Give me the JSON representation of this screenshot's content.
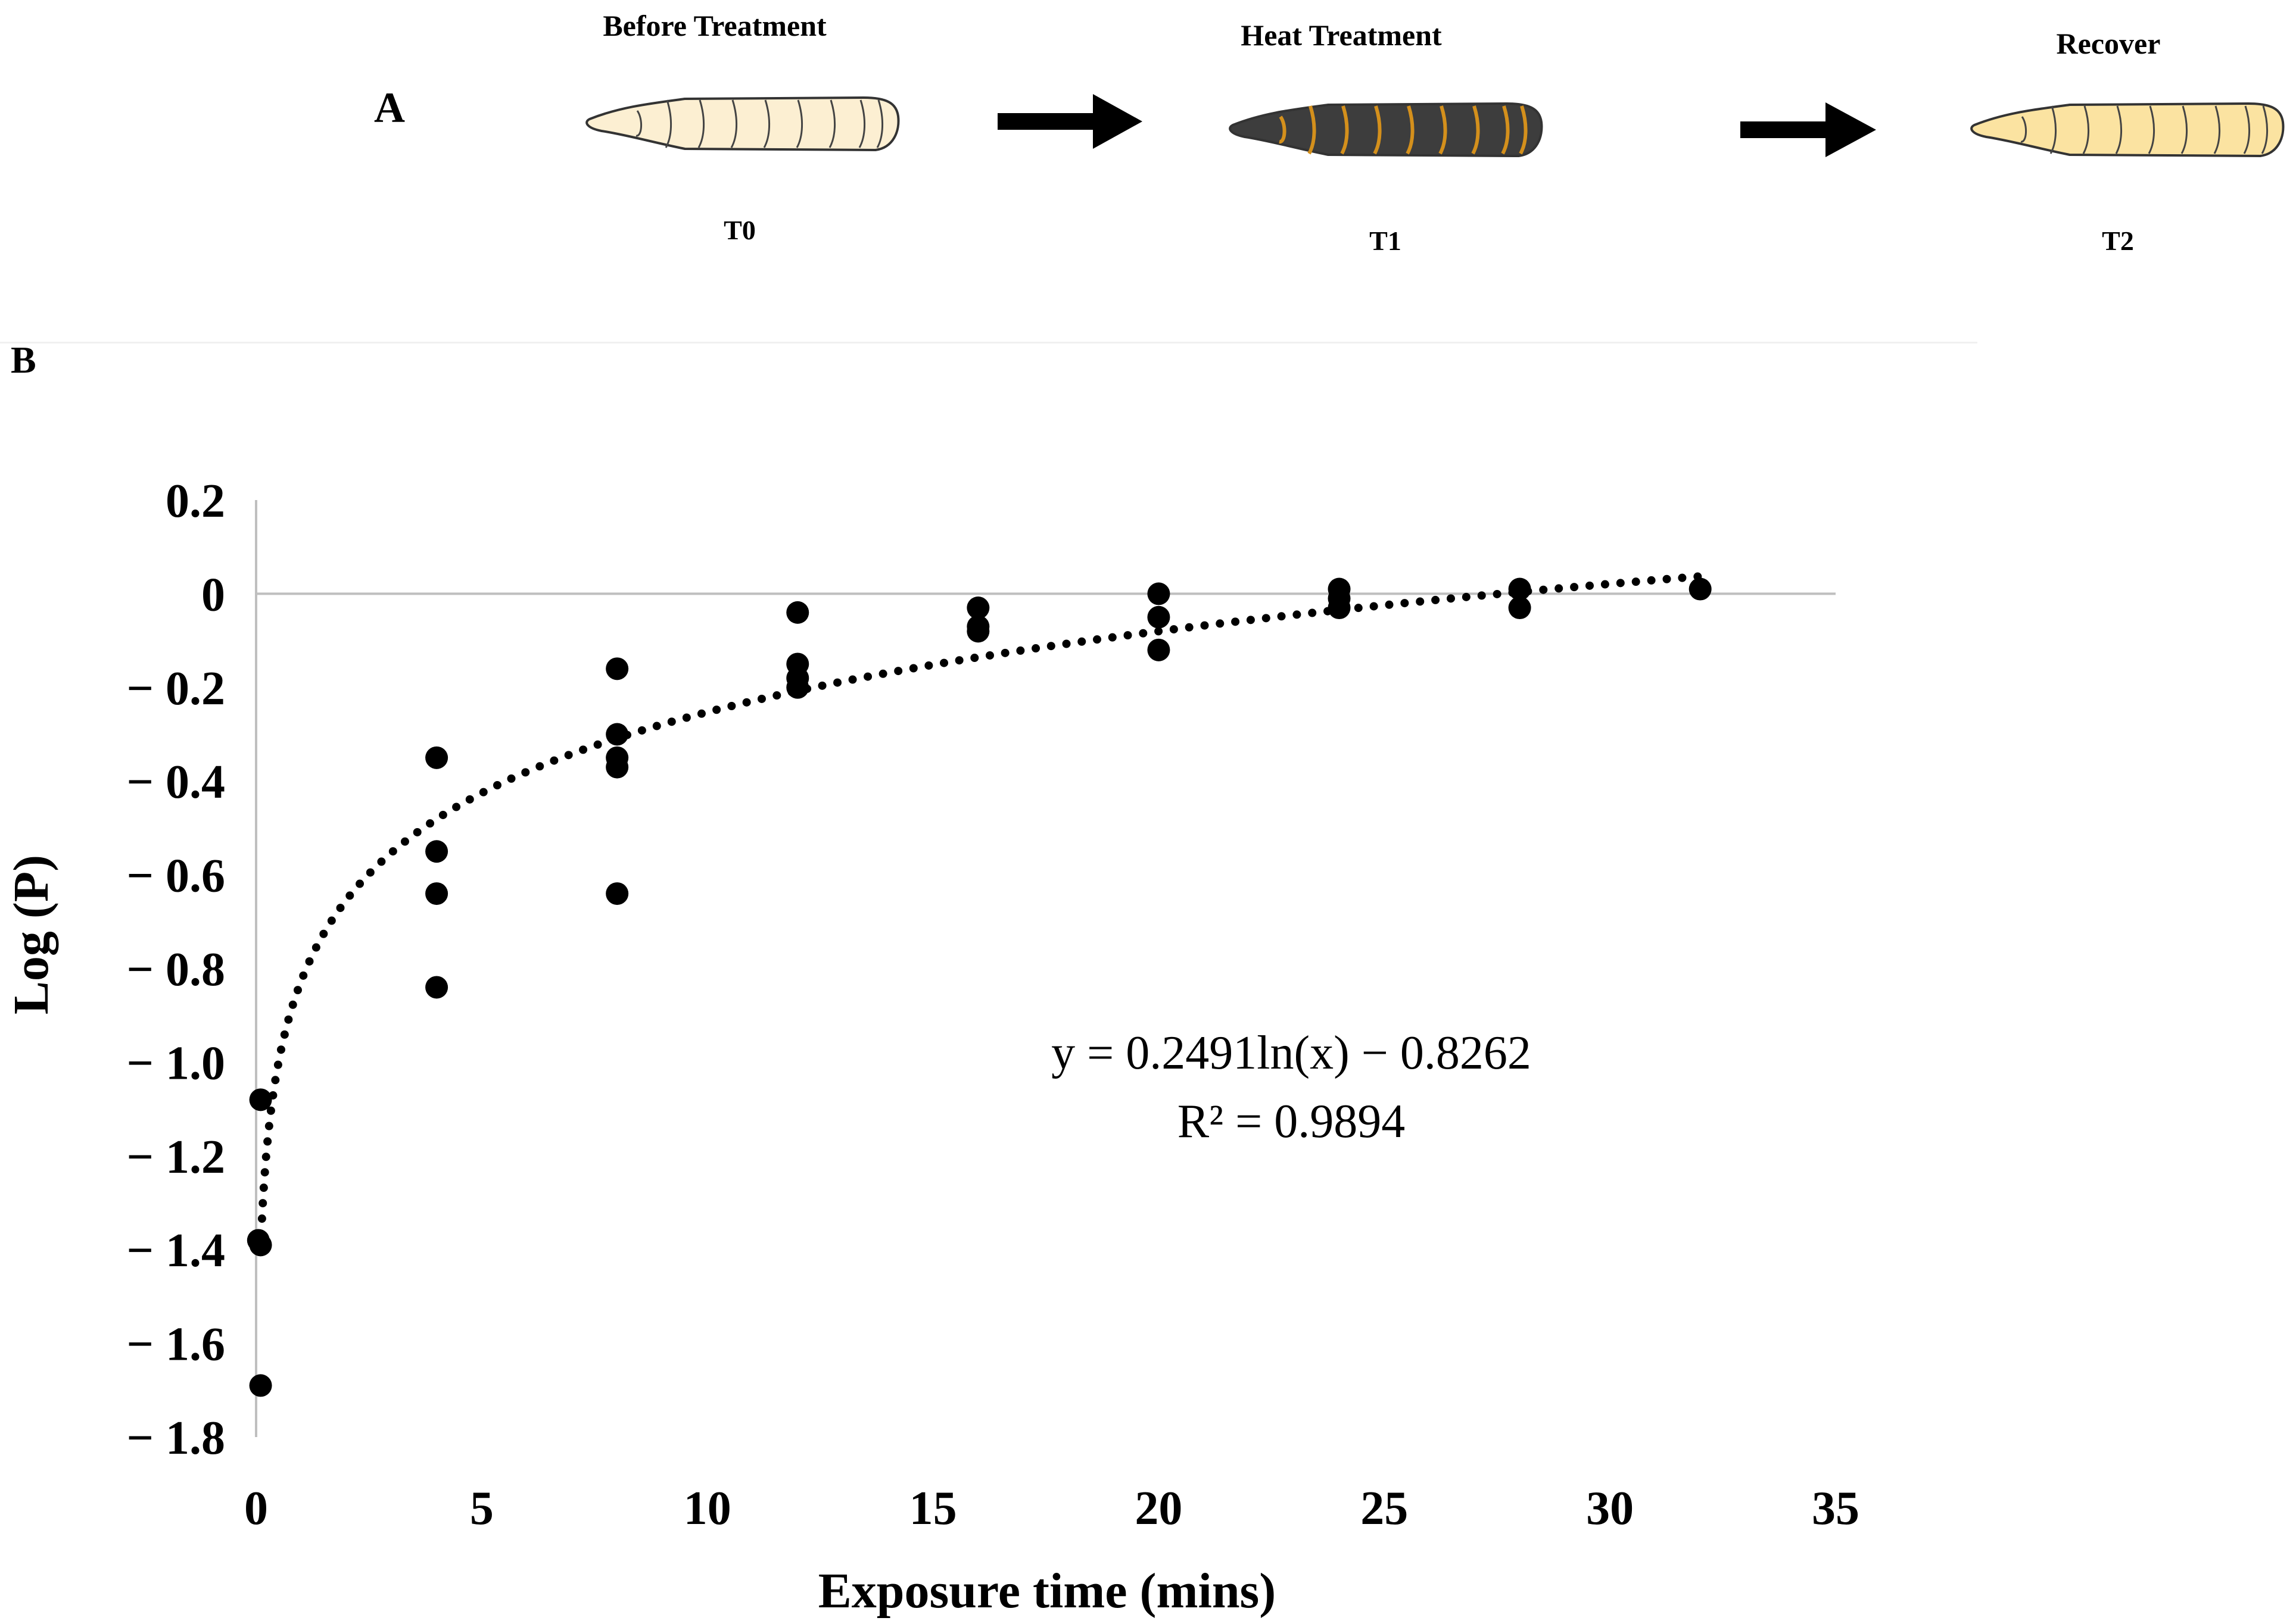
{
  "panel_a": {
    "letter": "A",
    "stages": [
      {
        "title": "Before Treatment",
        "time": "T0",
        "body_color": "#fcefd2",
        "band_color": "#444444"
      },
      {
        "title": "Heat Treatment",
        "time": "T1",
        "body_color": "#3d3d3d",
        "band_color": "#d4901c"
      },
      {
        "title": "Recover",
        "time": "T2",
        "body_color": "#fbe3a1",
        "band_color": "#444444"
      }
    ]
  },
  "panel_b": {
    "letter": "B"
  },
  "chart_data": {
    "type": "scatter",
    "xlabel": "Exposure time (mins)",
    "ylabel": "Log (P)",
    "xlim": [
      0,
      35
    ],
    "ylim": [
      -1.8,
      0.2
    ],
    "xticks": [
      0,
      5,
      10,
      15,
      20,
      25,
      30,
      35
    ],
    "yticks": [
      0.2,
      0,
      -0.2,
      -0.4,
      -0.6,
      -0.8,
      -1.0,
      -1.2,
      -1.4,
      -1.6,
      -1.8
    ],
    "ytick_labels": [
      "0.2",
      "0",
      "− 0.2",
      "− 0.4",
      "− 0.6",
      "− 0.8",
      "− 1.0",
      "− 1.2",
      "− 1.4",
      "− 1.6",
      "− 1.8"
    ],
    "series": [
      {
        "name": "Log (P)",
        "points": [
          [
            0.1,
            -1.08
          ],
          [
            0.05,
            -1.38
          ],
          [
            0.1,
            -1.39
          ],
          [
            0.1,
            -1.69
          ],
          [
            4,
            -0.35
          ],
          [
            4,
            -0.55
          ],
          [
            4,
            -0.64
          ],
          [
            4,
            -0.84
          ],
          [
            8,
            -0.16
          ],
          [
            8,
            -0.3
          ],
          [
            8,
            -0.35
          ],
          [
            8,
            -0.37
          ],
          [
            8,
            -0.64
          ],
          [
            12,
            -0.04
          ],
          [
            12,
            -0.15
          ],
          [
            12,
            -0.18
          ],
          [
            12,
            -0.2
          ],
          [
            16,
            -0.03
          ],
          [
            16,
            -0.07
          ],
          [
            16,
            -0.08
          ],
          [
            20,
            0.0
          ],
          [
            20,
            -0.05
          ],
          [
            20,
            -0.12
          ],
          [
            24,
            0.01
          ],
          [
            24,
            -0.01
          ],
          [
            24,
            -0.03
          ],
          [
            28,
            0.01
          ],
          [
            28,
            -0.03
          ],
          [
            32,
            0.01
          ]
        ]
      }
    ],
    "trendline": {
      "type": "logarithmic",
      "a": 0.2491,
      "b": -0.8262,
      "x_range": [
        0.1,
        32
      ],
      "equation_label": "y = 0.2491ln(x) − 0.8262",
      "r2_label": "R² = 0.9894"
    },
    "colors": {
      "points": "#000000",
      "axis": "#bfbfbf",
      "text": "#000000"
    }
  }
}
